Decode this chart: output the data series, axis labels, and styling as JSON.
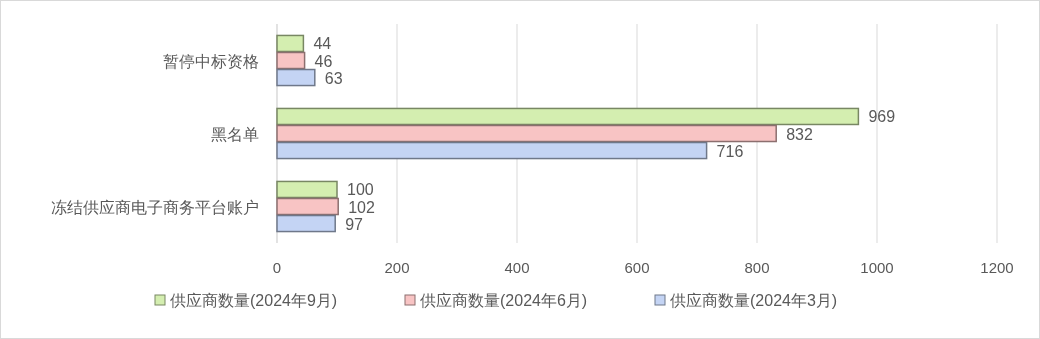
{
  "chart_data": {
    "type": "bar",
    "orientation": "horizontal",
    "categories": [
      "暂停中标资格",
      "黑名单",
      "冻结供应商电子商务平台账户"
    ],
    "series": [
      {
        "name": "供应商数量(2024年9月)",
        "color": "#d4eeb0",
        "values": [
          44,
          969,
          100
        ]
      },
      {
        "name": "供应商数量(2024年6月)",
        "color": "#f8c4c4",
        "values": [
          46,
          832,
          102
        ]
      },
      {
        "name": "供应商数量(2024年3月)",
        "color": "#c4d4f4",
        "values": [
          63,
          716,
          97
        ]
      }
    ],
    "xlim": [
      0,
      1200
    ],
    "xticks": [
      0,
      200,
      400,
      600,
      800,
      1000,
      1200
    ],
    "grid": "x",
    "legend": "bottom",
    "data_labels": true
  }
}
